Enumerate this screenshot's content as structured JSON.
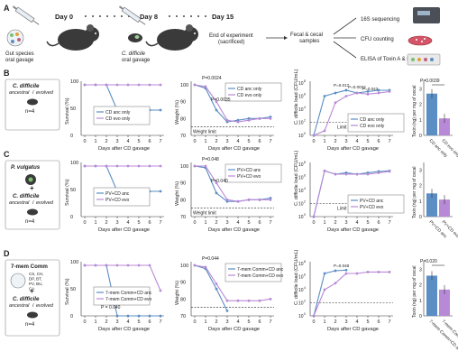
{
  "colors": {
    "anc": "#5b8ec4",
    "evo": "#b889d6",
    "limit": "#222222"
  },
  "panel_A": {
    "label": "A",
    "day0": "Day 0",
    "day8": "Day 8",
    "day15": "Day 15",
    "gut_species_l1": "Gut species",
    "gut_species_l2": "oral gavage",
    "cd_l1": "C. difficile",
    "cd_l2": "oral gavage",
    "end_l1": "End of experiment",
    "end_l2": "(sacrificed)",
    "samples_l1": "Fecal & cecal",
    "samples_l2": "samples",
    "out1": "16S sequencing",
    "out2": "CFU counting",
    "out3": "ELISA of Toxin A & B"
  },
  "rows": [
    {
      "label": "B",
      "organisms": [
        "C. difficile"
      ],
      "legend_box": {
        "has_plus": false,
        "n": "n=4",
        "anc": "ancestral",
        "evo": "evolved",
        "sep": " / "
      },
      "survival": {
        "ylabel": "Survival (%)",
        "xlabel": "Days after CD gavage",
        "legend": [
          "CD anc only",
          "CD evo only"
        ]
      },
      "weight": {
        "ylabel": "Weight (%)",
        "xlabel": "Days after CD gavage",
        "legend": [
          "CD anc only",
          "CD evo only"
        ],
        "pvals": [
          "P=0.0024",
          "P=0.0035"
        ],
        "limit": "Weight limit"
      },
      "load": {
        "ylabel": "C. difficile load (CFU/mL)",
        "xlabel": "Days after CD gavage",
        "legend": [
          "CD anc only",
          "CD evo only"
        ],
        "pvals": [
          "P=0.017",
          "P=0.0032",
          "P=0.043"
        ],
        "limit": "Limit of detection"
      },
      "toxin": {
        "ylabel": "Toxin (ng) per mg of cecal",
        "pval": "P=0.0039",
        "cats": [
          "CD anc only",
          "CD evo only"
        ]
      }
    },
    {
      "label": "C",
      "organisms": [
        "P. vulgatus",
        "C. difficile"
      ],
      "legend_box": {
        "has_plus": true,
        "n": "n=4",
        "anc": "ancestral",
        "evo": "evolved",
        "sep": " / "
      },
      "survival": {
        "ylabel": "Survival (%)",
        "xlabel": "Days after CD gavage",
        "legend": [
          "PV+CD anc",
          "PV+CD evo"
        ]
      },
      "weight": {
        "ylabel": "Weight (%)",
        "xlabel": "Days after CD gavage",
        "legend": [
          "PV+CD anc",
          "PV+CD evo"
        ],
        "pvals": [
          "P=0.048",
          "P=0.040"
        ],
        "limit": "Weight limit"
      },
      "load": {
        "ylabel": "C. difficile load (CFU/mL)",
        "xlabel": "Days after CD gavage",
        "legend": [
          "PV+CD anc",
          "PV+CD evo"
        ],
        "pvals": [],
        "limit": "Limit of detection"
      },
      "toxin": {
        "ylabel": "Toxin (ng) per mg of cecal",
        "pval": "",
        "cats": [
          "PV+CD anc",
          "PV+CD evo"
        ]
      }
    },
    {
      "label": "D",
      "organisms": [
        "7-mem Comm",
        "C. difficile"
      ],
      "community": [
        "CS, CH,",
        "DP, BT,",
        "PV, BU,",
        "CA"
      ],
      "legend_box": {
        "has_plus": true,
        "n": "n=4",
        "anc": "ancestral",
        "evo": "evolved",
        "sep": " / "
      },
      "survival": {
        "ylabel": "Survival (%)",
        "xlabel": "Days after CD gavage",
        "legend": [
          "7-mem Comm+CD anc",
          "7-mem Comm+CD evo"
        ],
        "pvals": [
          "P = 0.040"
        ]
      },
      "weight": {
        "ylabel": "Weight (%)",
        "xlabel": "Days after CD gavage",
        "legend": [
          "7-mem Comm+CD anc",
          "7-mem Comm+CD evo"
        ],
        "pvals": [
          "P=0.044"
        ],
        "limit": ""
      },
      "load": {
        "ylabel": "C. difficile load (CFU/mL)",
        "xlabel": "Days after CD gavage",
        "legend": [],
        "pvals": [
          "P=0.048"
        ],
        "limit": ""
      },
      "toxin": {
        "ylabel": "Toxin (ng) per mg of cecal",
        "pval": "P=0.020",
        "cats": [
          "7-mem Comm+CD anc",
          "7-mem Comm+CD evo"
        ]
      }
    }
  ],
  "chart_data": [
    {
      "type": "line",
      "panel": "B-survival",
      "x": [
        0,
        1,
        2,
        3,
        4,
        5,
        6,
        7
      ],
      "xlabel": "Days after CD gavage",
      "ylabel": "Survival (%)",
      "ylim": [
        0,
        100
      ],
      "series": [
        {
          "name": "CD anc only",
          "values": [
            100,
            100,
            100,
            50,
            50,
            50,
            50,
            50
          ]
        },
        {
          "name": "CD evo only",
          "values": [
            100,
            100,
            100,
            100,
            100,
            100,
            100,
            100
          ]
        }
      ]
    },
    {
      "type": "line",
      "panel": "B-weight",
      "x": [
        0,
        1,
        2,
        3,
        4,
        5,
        6,
        7
      ],
      "xlabel": "Days after CD gavage",
      "ylabel": "Weight (%)",
      "ylim": [
        70,
        100
      ],
      "series": [
        {
          "name": "CD anc only",
          "values": [
            100,
            98,
            85,
            78,
            79,
            80,
            80,
            81
          ]
        },
        {
          "name": "CD evo only",
          "values": [
            100,
            99,
            90,
            79,
            78,
            79,
            80,
            80
          ]
        }
      ]
    },
    {
      "type": "line",
      "panel": "B-load",
      "x": [
        0,
        1,
        2,
        3,
        4,
        5,
        6,
        7
      ],
      "xlabel": "Days after CD gavage",
      "ylabel": "C. difficile load (CFU/mL)",
      "yscale": "log",
      "series": [
        {
          "name": "CD anc only",
          "values": [
            0,
            1000000,
            3000000,
            8000000,
            3000000,
            5000000,
            8000000,
            8000000
          ]
        },
        {
          "name": "CD evo only",
          "values": [
            0,
            5,
            100000,
            1000000,
            3000000,
            2000000,
            3000000,
            5000000
          ]
        }
      ]
    },
    {
      "type": "bar",
      "panel": "B-toxin",
      "categories": [
        "CD anc only",
        "CD evo only"
      ],
      "values": [
        2.7,
        1.1
      ]
    },
    {
      "type": "line",
      "panel": "C-survival",
      "x": [
        0,
        1,
        2,
        3,
        4,
        5,
        6,
        7
      ],
      "xlabel": "Days after CD gavage",
      "ylabel": "Survival (%)",
      "ylim": [
        0,
        100
      ],
      "series": [
        {
          "name": "PV+CD anc",
          "values": [
            100,
            100,
            100,
            50,
            50,
            50,
            50,
            50
          ]
        },
        {
          "name": "PV+CD evo",
          "values": [
            100,
            100,
            100,
            100,
            100,
            100,
            100,
            100
          ]
        }
      ]
    },
    {
      "type": "line",
      "panel": "C-weight",
      "x": [
        0,
        1,
        2,
        3,
        4,
        5,
        6,
        7
      ],
      "xlabel": "Days after CD gavage",
      "ylabel": "Weight (%)",
      "ylim": [
        70,
        100
      ],
      "series": [
        {
          "name": "PV+CD anc",
          "values": [
            100,
            99,
            84,
            79,
            79,
            80,
            80,
            81
          ]
        },
        {
          "name": "PV+CD evo",
          "values": [
            100,
            100,
            90,
            80,
            79,
            80,
            80,
            80
          ]
        }
      ]
    },
    {
      "type": "line",
      "panel": "C-load",
      "x": [
        0,
        1,
        2,
        3,
        4,
        5,
        6,
        7
      ],
      "xlabel": "Days after CD gavage",
      "ylabel": "C. difficile load (CFU/mL)",
      "yscale": "log",
      "series": [
        {
          "name": "PV+CD anc",
          "values": [
            0,
            10000000,
            3000000,
            5000000,
            3000000,
            5000000,
            8000000,
            10000000
          ]
        },
        {
          "name": "PV+CD evo",
          "values": [
            0,
            10000000,
            3000000,
            3000000,
            3000000,
            3000000,
            5000000,
            8000000
          ]
        }
      ]
    },
    {
      "type": "bar",
      "panel": "C-toxin",
      "categories": [
        "PV+CD anc",
        "PV+CD evo"
      ],
      "values": [
        1.5,
        1.1
      ]
    },
    {
      "type": "line",
      "panel": "D-survival",
      "x": [
        0,
        1,
        2,
        3,
        4,
        5,
        6,
        7
      ],
      "xlabel": "Days after CD gavage",
      "ylabel": "Survival (%)",
      "ylim": [
        0,
        100
      ],
      "series": [
        {
          "name": "7-mem Comm+CD anc",
          "values": [
            100,
            100,
            100,
            0,
            0,
            0,
            0,
            0
          ]
        },
        {
          "name": "7-mem Comm+CD evo",
          "values": [
            100,
            100,
            100,
            100,
            100,
            100,
            100,
            50
          ]
        }
      ]
    },
    {
      "type": "line",
      "panel": "D-weight",
      "x": [
        0,
        1,
        2,
        3,
        4,
        5,
        6,
        7
      ],
      "xlabel": "Days after CD gavage",
      "ylabel": "Weight (%)",
      "ylim": [
        70,
        100
      ],
      "series": [
        {
          "name": "7-mem Comm+CD anc",
          "values": [
            100,
            98,
            86,
            73,
            null,
            null,
            null,
            null
          ]
        },
        {
          "name": "7-mem Comm+CD evo",
          "values": [
            100,
            99,
            89,
            79,
            79,
            79,
            79,
            80
          ]
        }
      ]
    },
    {
      "type": "line",
      "panel": "D-load",
      "x": [
        0,
        1,
        2,
        3,
        4,
        5,
        6,
        7
      ],
      "xlabel": "Days after CD gavage",
      "ylabel": "C. difficile load (CFU/mL)",
      "yscale": "log",
      "series": [
        {
          "name": "7-mem Comm+CD anc",
          "values": [
            0,
            3000000,
            8000000,
            10000000,
            null,
            null,
            null,
            null
          ]
        },
        {
          "name": "7-mem Comm+CD evo",
          "values": [
            0,
            10000,
            100000,
            3000000,
            3000000,
            5000000,
            5000000,
            5000000
          ]
        }
      ]
    },
    {
      "type": "bar",
      "panel": "D-toxin",
      "categories": [
        "7-mem Comm+CD anc",
        "7-mem Comm+CD evo"
      ],
      "values": [
        2.6,
        1.7
      ]
    }
  ]
}
